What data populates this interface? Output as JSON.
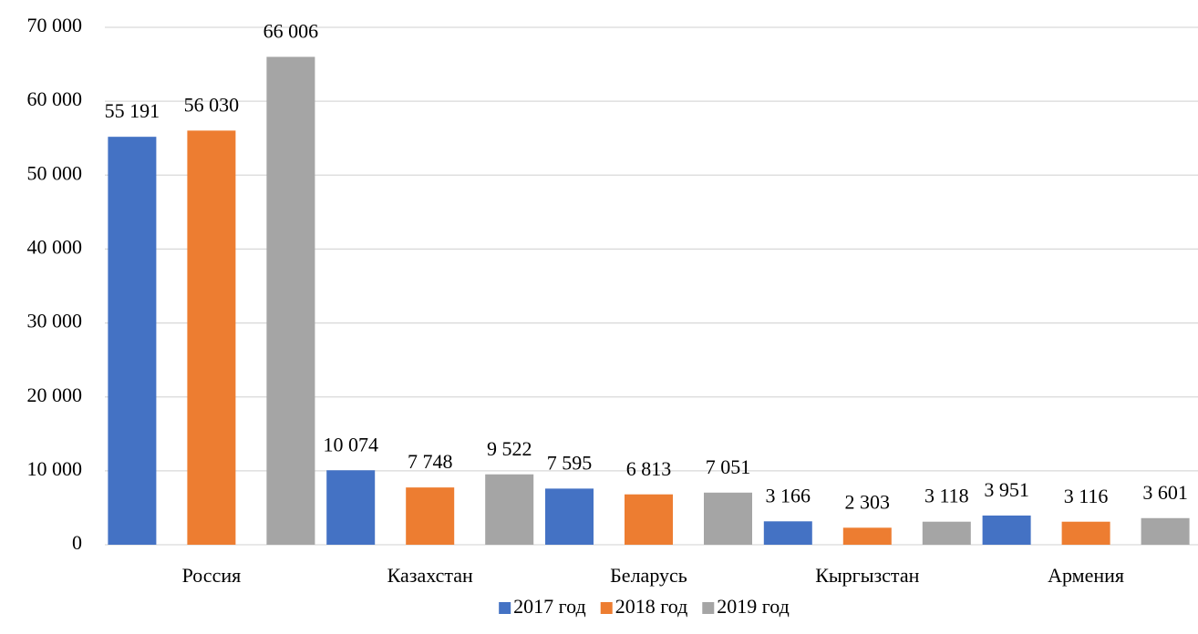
{
  "chart_data": {
    "type": "bar",
    "categories": [
      "Россия",
      "Казахстан",
      "Беларусь",
      "Кыргызстан",
      "Армения"
    ],
    "series": [
      {
        "name": "2017 год",
        "color": "#4472c4",
        "values": [
          55191,
          10074,
          7595,
          3166,
          3951
        ],
        "value_labels": [
          "55 191",
          "10 074",
          "7 595",
          "3 166",
          "3 951"
        ]
      },
      {
        "name": "2018 год",
        "color": "#ed7d31",
        "values": [
          56030,
          7748,
          6813,
          2303,
          3116
        ],
        "value_labels": [
          "56 030",
          "7 748",
          "6 813",
          "2 303",
          "3 116"
        ]
      },
      {
        "name": "2019 год",
        "color": "#a5a5a5",
        "values": [
          66006,
          9522,
          7051,
          3118,
          3601
        ],
        "value_labels": [
          "66 006",
          "9 522",
          "7 051",
          "3 118",
          "3 601"
        ]
      }
    ],
    "ylim": [
      0,
      70000
    ],
    "yticks": [
      0,
      {
        "value": 10000,
        "label": "10 000"
      },
      {
        "value": 20000,
        "label": "20 000"
      },
      {
        "value": 30000,
        "label": "30 000"
      },
      {
        "value": 40000,
        "label": "40 000"
      },
      {
        "value": 50000,
        "label": "50 000"
      },
      {
        "value": 60000,
        "label": "60 000"
      },
      {
        "value": 70000,
        "label": "70 000"
      }
    ],
    "grid": true,
    "legend": "bottom"
  }
}
